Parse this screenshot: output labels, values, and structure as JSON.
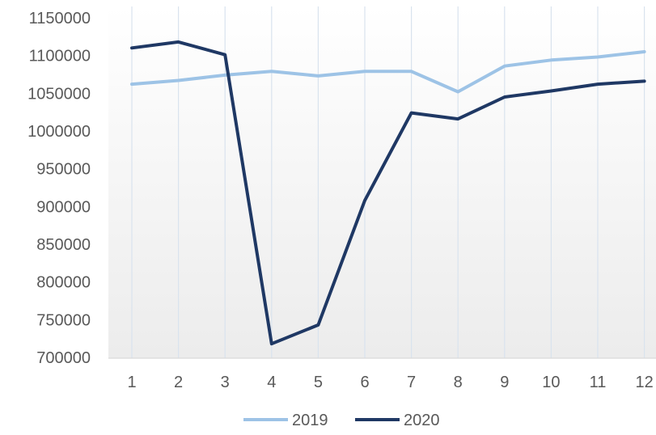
{
  "chart_data": {
    "type": "line",
    "title": "",
    "xlabel": "",
    "ylabel": "",
    "categories": [
      "1",
      "2",
      "3",
      "4",
      "5",
      "6",
      "7",
      "8",
      "9",
      "10",
      "11",
      "12"
    ],
    "series": [
      {
        "name": "2019",
        "color": "#9dc3e6",
        "values": [
          1062000,
          1067000,
          1074000,
          1079000,
          1073000,
          1079000,
          1079000,
          1052000,
          1086000,
          1094000,
          1098000,
          1105000
        ]
      },
      {
        "name": "2020",
        "color": "#1f3864",
        "values": [
          1110000,
          1118000,
          1101000,
          718000,
          743000,
          908000,
          1024000,
          1016000,
          1045000,
          1053000,
          1062000,
          1066000
        ]
      }
    ],
    "ylim": [
      700000,
      1150000
    ],
    "yticks": [
      "700000",
      "750000",
      "800000",
      "850000",
      "900000",
      "950000",
      "1000000",
      "1050000",
      "1100000",
      "1150000"
    ],
    "grid": "vertical",
    "legend_position": "bottom",
    "background": "white-to-light-gray gradient"
  }
}
